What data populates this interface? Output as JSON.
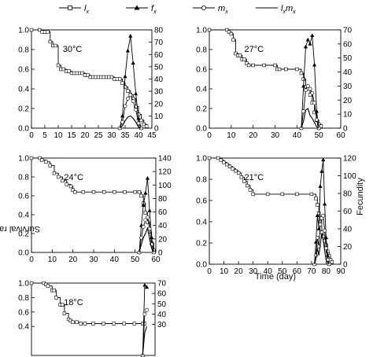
{
  "legend": {
    "items": [
      {
        "label": "l",
        "sub": "x",
        "marker": "open-square"
      },
      {
        "label": "f",
        "sub": "x",
        "marker": "filled-triangle"
      },
      {
        "label": "m",
        "sub": "x",
        "marker": "open-circle"
      },
      {
        "label": "l",
        "sub": "x",
        "label2": "m",
        "sub2": "x",
        "marker": "line"
      }
    ]
  },
  "shared": {
    "ylabel_left": "Survival rate (lx)",
    "ylabel_right": "Fecundity",
    "xlabel": "Time (day)"
  },
  "chart_data": [
    {
      "type": "line",
      "title": "30°C",
      "xlim": [
        0,
        45
      ],
      "xticks": [
        0,
        5,
        10,
        15,
        20,
        25,
        30,
        35,
        40,
        45
      ],
      "ylim": [
        0.0,
        1.0
      ],
      "yticks": [
        0.0,
        0.2,
        0.4,
        0.6,
        0.8,
        1.0
      ],
      "y2lim": [
        0,
        80
      ],
      "y2ticks": [
        0,
        10,
        20,
        30,
        40,
        50,
        60,
        70,
        80
      ],
      "series": [
        {
          "name": "lx",
          "axis": "left",
          "x": [
            0,
            3,
            4,
            5,
            6,
            7,
            8,
            9,
            10,
            11,
            12,
            13,
            14,
            15,
            16,
            17,
            18,
            19,
            20,
            21,
            22,
            23,
            24,
            25,
            26,
            27,
            28,
            29,
            30,
            31,
            32,
            33,
            34,
            35,
            36,
            37,
            38,
            39,
            40,
            41,
            42,
            43
          ],
          "y": [
            1.0,
            1.0,
            0.98,
            0.98,
            0.98,
            0.88,
            0.84,
            0.84,
            0.64,
            0.6,
            0.6,
            0.58,
            0.58,
            0.56,
            0.56,
            0.56,
            0.56,
            0.56,
            0.54,
            0.54,
            0.52,
            0.52,
            0.52,
            0.52,
            0.52,
            0.52,
            0.52,
            0.52,
            0.52,
            0.5,
            0.5,
            0.5,
            0.46,
            0.42,
            0.38,
            0.34,
            0.3,
            0.22,
            0.14,
            0.08,
            0.04,
            0.02
          ]
        },
        {
          "name": "fx",
          "axis": "right",
          "x": [
            33,
            34,
            35,
            36,
            37,
            38,
            39,
            40,
            41
          ],
          "y": [
            0,
            10,
            42,
            63,
            75,
            53,
            28,
            8,
            0
          ]
        },
        {
          "name": "mx",
          "axis": "right",
          "x": [
            33,
            34,
            35,
            36,
            37,
            38,
            39,
            40,
            41
          ],
          "y": [
            0,
            5,
            18,
            24,
            27,
            22,
            15,
            4,
            0
          ]
        },
        {
          "name": "lxmx",
          "axis": "right",
          "x": [
            33,
            34,
            35,
            36,
            37,
            38,
            39,
            40,
            41
          ],
          "y": [
            0,
            2,
            6,
            9,
            10,
            8,
            5,
            1,
            0
          ]
        }
      ]
    },
    {
      "type": "line",
      "title": "27°C",
      "xlim": [
        0,
        60
      ],
      "xticks": [
        0,
        10,
        20,
        30,
        40,
        50,
        60
      ],
      "ylim": [
        0.0,
        1.0
      ],
      "yticks": [
        0.0,
        0.2,
        0.4,
        0.6,
        0.8,
        1.0
      ],
      "y2lim": [
        0,
        70
      ],
      "y2ticks": [
        0,
        10,
        20,
        30,
        40,
        50,
        60,
        70
      ],
      "series": [
        {
          "name": "lx",
          "axis": "left",
          "x": [
            0,
            8,
            9,
            10,
            11,
            12,
            13,
            14,
            15,
            16,
            17,
            18,
            20,
            25,
            30,
            31,
            32,
            35,
            40,
            42,
            43,
            44,
            45,
            46,
            47,
            48,
            49,
            50,
            51
          ],
          "y": [
            1.0,
            1.0,
            0.98,
            0.96,
            0.9,
            0.76,
            0.74,
            0.74,
            0.7,
            0.7,
            0.66,
            0.64,
            0.64,
            0.64,
            0.64,
            0.6,
            0.6,
            0.6,
            0.6,
            0.56,
            0.5,
            0.42,
            0.4,
            0.34,
            0.26,
            0.16,
            0.08,
            0.04,
            0.02
          ]
        },
        {
          "name": "fx",
          "axis": "right",
          "x": [
            42,
            43,
            44,
            45,
            46,
            47,
            48,
            49,
            50
          ],
          "y": [
            0,
            30,
            58,
            63,
            60,
            66,
            45,
            12,
            0
          ]
        },
        {
          "name": "mx",
          "axis": "right",
          "x": [
            42,
            43,
            44,
            45,
            46,
            47,
            48,
            49,
            50
          ],
          "y": [
            0,
            12,
            27,
            30,
            28,
            25,
            18,
            6,
            0
          ]
        },
        {
          "name": "lxmx",
          "axis": "right",
          "x": [
            42,
            43,
            44,
            45,
            46,
            47,
            48,
            49,
            50
          ],
          "y": [
            0,
            5,
            13,
            14,
            9,
            7,
            4,
            1,
            0
          ]
        }
      ]
    },
    {
      "type": "line",
      "title": "24°C",
      "xlim": [
        0,
        60
      ],
      "xticks": [
        0,
        10,
        20,
        30,
        40,
        50,
        60
      ],
      "ylim": [
        0.0,
        1.0
      ],
      "yticks": [
        0.0,
        0.2,
        0.4,
        0.6,
        0.8,
        1.0
      ],
      "y2lim": [
        0,
        140
      ],
      "y2ticks": [
        0,
        20,
        40,
        60,
        80,
        100,
        120,
        140
      ],
      "series": [
        {
          "name": "lx",
          "axis": "left",
          "x": [
            0,
            4,
            5,
            7,
            9,
            11,
            13,
            15,
            17,
            19,
            20,
            21,
            25,
            30,
            35,
            40,
            45,
            50,
            52,
            53,
            54,
            55,
            56,
            57,
            58,
            59
          ],
          "y": [
            1.0,
            1.0,
            0.98,
            0.96,
            0.92,
            0.84,
            0.8,
            0.76,
            0.72,
            0.7,
            0.66,
            0.64,
            0.64,
            0.64,
            0.64,
            0.64,
            0.64,
            0.64,
            0.64,
            0.6,
            0.52,
            0.42,
            0.32,
            0.22,
            0.1,
            0.02
          ]
        },
        {
          "name": "fx",
          "axis": "right",
          "x": [
            52,
            53,
            54,
            55,
            56,
            57,
            58,
            59
          ],
          "y": [
            0,
            40,
            70,
            88,
            110,
            62,
            22,
            0
          ]
        },
        {
          "name": "mx",
          "axis": "right",
          "x": [
            52,
            53,
            54,
            55,
            56,
            57,
            58,
            59
          ],
          "y": [
            0,
            22,
            38,
            48,
            52,
            35,
            12,
            0
          ]
        },
        {
          "name": "lxmx",
          "axis": "right",
          "x": [
            52,
            53,
            54,
            55,
            56,
            57,
            58,
            59
          ],
          "y": [
            0,
            12,
            22,
            28,
            36,
            20,
            6,
            0
          ]
        }
      ]
    },
    {
      "type": "line",
      "title": "21°C",
      "xlim": [
        0,
        90
      ],
      "xticks": [
        0,
        10,
        20,
        30,
        40,
        50,
        60,
        70,
        80,
        90
      ],
      "ylim": [
        0.0,
        1.0
      ],
      "yticks": [
        0.0,
        0.2,
        0.4,
        0.6,
        0.8,
        1.0
      ],
      "y2lim": [
        0,
        120
      ],
      "y2ticks": [
        0,
        20,
        40,
        60,
        80,
        100,
        120
      ],
      "series": [
        {
          "name": "lx",
          "axis": "left",
          "x": [
            0,
            6,
            8,
            10,
            12,
            14,
            16,
            18,
            20,
            22,
            24,
            26,
            28,
            30,
            40,
            50,
            60,
            70,
            73,
            74,
            75,
            76,
            77,
            78,
            79,
            80,
            81,
            82,
            83,
            84
          ],
          "y": [
            1.0,
            1.0,
            0.98,
            0.96,
            0.94,
            0.92,
            0.9,
            0.88,
            0.86,
            0.82,
            0.78,
            0.74,
            0.7,
            0.66,
            0.66,
            0.66,
            0.66,
            0.66,
            0.62,
            0.56,
            0.48,
            0.4,
            0.3,
            0.26,
            0.22,
            0.18,
            0.12,
            0.08,
            0.04,
            0.02
          ]
        },
        {
          "name": "fx",
          "axis": "right",
          "x": [
            72,
            73,
            74,
            75,
            76,
            77,
            78,
            79,
            80,
            81,
            82
          ],
          "y": [
            0,
            25,
            55,
            40,
            88,
            105,
            118,
            68,
            30,
            10,
            0
          ]
        },
        {
          "name": "mx",
          "axis": "right",
          "x": [
            72,
            73,
            74,
            75,
            76,
            77,
            78,
            79,
            80,
            81,
            82
          ],
          "y": [
            0,
            10,
            30,
            20,
            45,
            52,
            55,
            38,
            18,
            5,
            0
          ]
        },
        {
          "name": "lxmx",
          "axis": "right",
          "x": [
            72,
            73,
            74,
            75,
            76,
            77,
            78,
            79,
            80,
            81,
            82
          ],
          "y": [
            0,
            6,
            18,
            10,
            22,
            35,
            28,
            15,
            5,
            2,
            0
          ]
        }
      ]
    },
    {
      "type": "line",
      "title": "18°C",
      "xlim": [
        0,
        60
      ],
      "ylim": [
        0.0,
        1.0
      ],
      "yticks": [
        0.4,
        0.6,
        0.8,
        1.0
      ],
      "y2lim": [
        0,
        70
      ],
      "y2ticks": [
        30,
        40,
        50,
        60,
        70
      ],
      "series": [
        {
          "name": "lx",
          "axis": "left",
          "x": [
            0,
            6,
            7,
            8,
            10,
            11,
            12,
            14,
            15,
            16,
            18,
            19,
            20,
            22,
            24,
            26,
            30,
            35,
            40,
            45,
            50,
            54,
            55
          ],
          "y": [
            1.0,
            1.0,
            0.98,
            0.96,
            0.9,
            0.9,
            0.8,
            0.7,
            0.7,
            0.58,
            0.5,
            0.48,
            0.46,
            0.46,
            0.44,
            0.44,
            0.44,
            0.44,
            0.44,
            0.44,
            0.44,
            0.44,
            0.44
          ]
        },
        {
          "name": "fx",
          "axis": "right",
          "x": [
            54,
            55,
            56
          ],
          "y": [
            0,
            68,
            66
          ]
        },
        {
          "name": "mx",
          "axis": "right",
          "x": [
            54,
            55,
            56
          ],
          "y": [
            0,
            40,
            44
          ]
        },
        {
          "name": "lxmx",
          "axis": "right",
          "x": [
            54,
            55,
            56
          ],
          "y": [
            0,
            22,
            28
          ]
        }
      ]
    }
  ]
}
